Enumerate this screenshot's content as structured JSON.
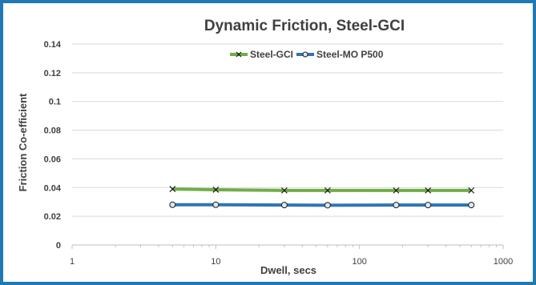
{
  "chart_data": {
    "type": "line",
    "title": "Dynamic Friction, Steel-GCI",
    "xlabel": "Dwell, secs",
    "ylabel": "Friction Co-efficient",
    "x_scale": "log",
    "xlim": [
      1,
      1000
    ],
    "ylim": [
      0,
      0.14
    ],
    "x_ticks": [
      1,
      10,
      100,
      1000
    ],
    "x_tick_labels": [
      "1",
      "10",
      "100",
      "1000"
    ],
    "y_ticks": [
      0,
      0.02,
      0.04,
      0.06,
      0.08,
      0.1,
      0.12,
      0.14
    ],
    "y_tick_labels": [
      "0",
      "0.02",
      "0.04",
      "0.06",
      "0.08",
      "0.1",
      "0.12",
      "0.14"
    ],
    "grid": "horizontal",
    "legend": "top-center",
    "x": [
      5,
      10,
      30,
      60,
      180,
      300,
      600
    ],
    "series": [
      {
        "name": "Steel-GCI",
        "values": [
          0.039,
          0.0385,
          0.038,
          0.038,
          0.038,
          0.038,
          0.038
        ],
        "color": "#70ad47",
        "marker": "x"
      },
      {
        "name": "Steel-MO P500",
        "values": [
          0.028,
          0.028,
          0.0278,
          0.0277,
          0.0278,
          0.0278,
          0.0278
        ],
        "color": "#2e75b6",
        "marker": "circle"
      }
    ]
  }
}
